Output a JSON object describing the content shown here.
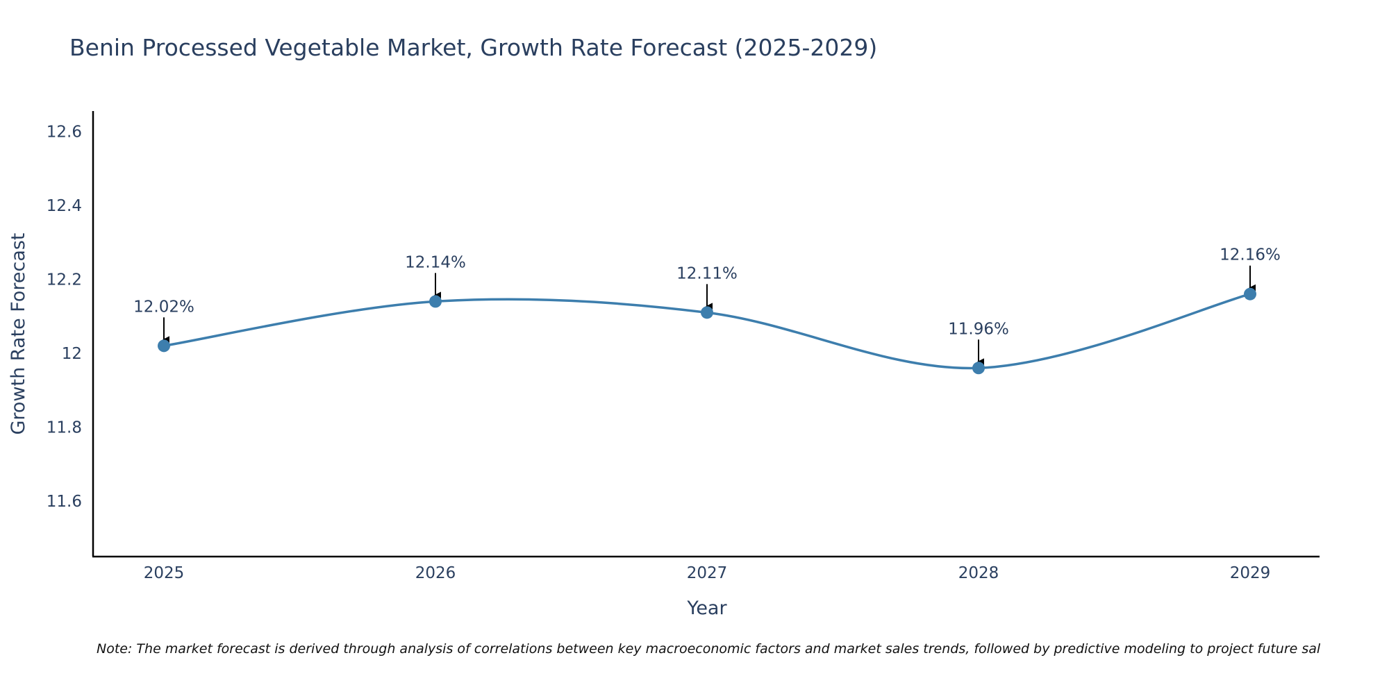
{
  "colors": {
    "line": "#3d7ead",
    "marker": "#3d7ead",
    "axis": "#000000",
    "text": "#2a3f5f",
    "arrow": "#000000"
  },
  "chart_data": {
    "type": "line",
    "title": "Benin Processed Vegetable Market, Growth Rate Forecast (2025-2029)",
    "xlabel": "Year",
    "ylabel": "Growth Rate Forecast",
    "categories": [
      "2025",
      "2026",
      "2027",
      "2028",
      "2029"
    ],
    "series": [
      {
        "name": "Growth Rate Forecast",
        "values": [
          12.02,
          12.14,
          12.11,
          11.96,
          12.16
        ],
        "labels": [
          "12.02%",
          "12.14%",
          "12.11%",
          "11.96%",
          "12.16%"
        ]
      }
    ],
    "ylim": [
      11.45,
      12.655
    ],
    "yticks": [
      11.6,
      11.8,
      12,
      12.2,
      12.4,
      12.6
    ],
    "ytick_labels": [
      "11.6",
      "11.8",
      "12",
      "12.2",
      "12.4",
      "12.6"
    ],
    "line_shape": "spline",
    "grid": false,
    "note": "Note: The market forecast is derived through analysis of correlations between key macroeconomic factors and market sales trends, followed by predictive modeling to project future sal"
  }
}
